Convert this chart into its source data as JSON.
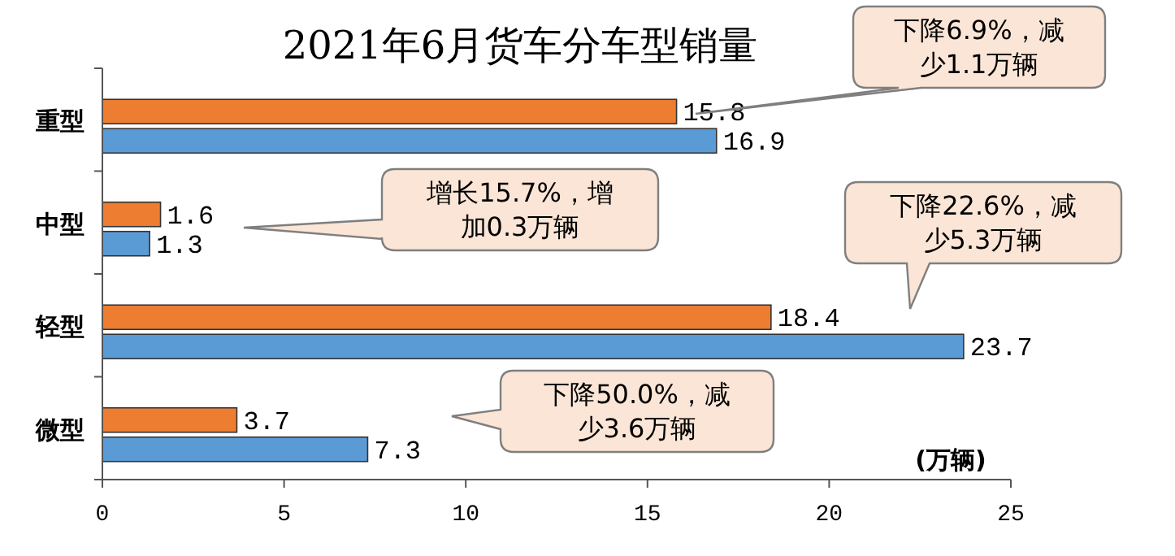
{
  "chart_data": {
    "type": "bar",
    "orientation": "horizontal",
    "title": "2021年6月货车分车型销量",
    "xlabel": "(万辆)",
    "categories": [
      "重型",
      "中型",
      "轻型",
      "微型"
    ],
    "series": [
      {
        "color": "#ed7d31",
        "values": [
          15.8,
          1.6,
          18.4,
          3.7
        ]
      },
      {
        "color": "#5b9bd5",
        "values": [
          16.9,
          1.3,
          23.7,
          7.3
        ]
      }
    ],
    "xlim": [
      0,
      25
    ],
    "xticks": [
      0,
      5,
      10,
      15,
      20,
      25
    ],
    "data_labels": true,
    "annotations": [
      "下降6.9%，减少1.1万辆",
      "增长15.7%，增加0.3万辆",
      "下降22.6%，减少5.3万辆",
      "下降50.0%，减少3.6万辆"
    ]
  }
}
